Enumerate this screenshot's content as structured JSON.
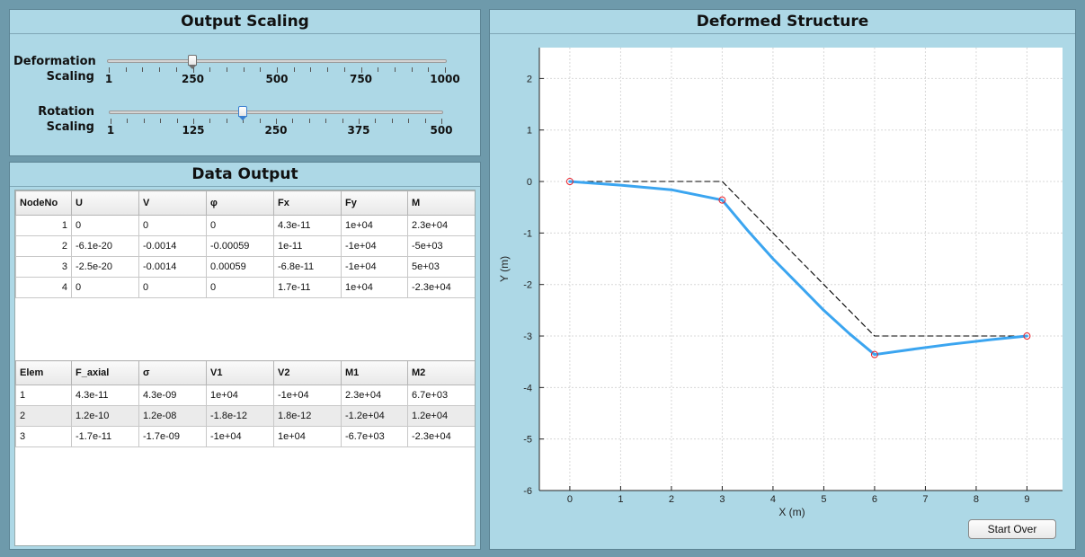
{
  "output_scaling": {
    "title": "Output Scaling",
    "deformation": {
      "label": "Deformation Scaling",
      "label_line1": "Deformation",
      "label_line2": "Scaling",
      "min": 1,
      "max": 1000,
      "value": 250,
      "tick_labels": [
        "1",
        "250",
        "500",
        "750",
        "1000"
      ]
    },
    "rotation": {
      "label": "Rotation Scaling",
      "label_line1": "Rotation",
      "label_line2": "Scaling",
      "min": 1,
      "max": 500,
      "value": 200,
      "tick_labels": [
        "1",
        "125",
        "250",
        "375",
        "500"
      ]
    }
  },
  "data_output": {
    "title": "Data Output",
    "nodes": {
      "columns": [
        "NodeNo",
        "U",
        "V",
        "φ",
        "Fx",
        "Fy",
        "M"
      ],
      "rows": [
        [
          "1",
          "0",
          "0",
          "0",
          "4.3e-11",
          "1e+04",
          "2.3e+04"
        ],
        [
          "2",
          "-6.1e-20",
          "-0.0014",
          "-0.00059",
          "1e-11",
          "-1e+04",
          "-5e+03"
        ],
        [
          "3",
          "-2.5e-20",
          "-0.0014",
          "0.00059",
          "-6.8e-11",
          "-1e+04",
          "5e+03"
        ],
        [
          "4",
          "0",
          "0",
          "0",
          "1.7e-11",
          "1e+04",
          "-2.3e+04"
        ]
      ]
    },
    "elements": {
      "columns": [
        "Elem",
        "F_axial",
        "σ",
        "V1",
        "V2",
        "M1",
        "M2"
      ],
      "rows": [
        [
          "1",
          "4.3e-11",
          "4.3e-09",
          "1e+04",
          "-1e+04",
          "2.3e+04",
          "6.7e+03"
        ],
        [
          "2",
          "1.2e-10",
          "1.2e-08",
          "-1.8e-12",
          "1.8e-12",
          "-1.2e+04",
          "1.2e+04"
        ],
        [
          "3",
          "-1.7e-11",
          "-1.7e-09",
          "-1e+04",
          "1e+04",
          "-6.7e+03",
          "-2.3e+04"
        ]
      ]
    }
  },
  "deformed_structure": {
    "title": "Deformed Structure",
    "start_over_label": "Start Over"
  },
  "colors": {
    "background": "#6e9aab",
    "panel": "#add8e6",
    "deformed_line": "#3ba5f0",
    "undeformed_line": "#000000",
    "node_marker": "#e8202a"
  },
  "chart_data": {
    "type": "line",
    "title": "",
    "xlabel": "X (m)",
    "ylabel": "Y (m)",
    "xlim": [
      -0.6,
      9.7
    ],
    "ylim": [
      -6,
      2.6
    ],
    "xticks": [
      0,
      1,
      2,
      3,
      4,
      5,
      6,
      7,
      8,
      9
    ],
    "yticks": [
      2,
      1,
      0,
      -1,
      -2,
      -3,
      -4,
      -5,
      -6
    ],
    "grid": true,
    "series": [
      {
        "style": "dashed",
        "color": "#000000",
        "points": [
          [
            0,
            0
          ],
          [
            3,
            0
          ],
          [
            6,
            -3
          ],
          [
            9,
            -3
          ]
        ]
      },
      {
        "style": "solid",
        "color": "#3ba5f0",
        "points": [
          [
            0,
            0
          ],
          [
            1,
            -0.07
          ],
          [
            2,
            -0.16
          ],
          [
            3,
            -0.36
          ],
          [
            3.5,
            -0.95
          ],
          [
            4,
            -1.5
          ],
          [
            4.5,
            -2.0
          ],
          [
            5,
            -2.5
          ],
          [
            5.5,
            -2.95
          ],
          [
            6,
            -3.36
          ],
          [
            6.8,
            -3.25
          ],
          [
            7.5,
            -3.16
          ],
          [
            8.3,
            -3.07
          ],
          [
            9,
            -3.0
          ]
        ]
      }
    ],
    "nodes": [
      [
        0,
        0
      ],
      [
        3,
        -0.36
      ],
      [
        6,
        -3.36
      ],
      [
        9,
        -3.0
      ]
    ]
  }
}
